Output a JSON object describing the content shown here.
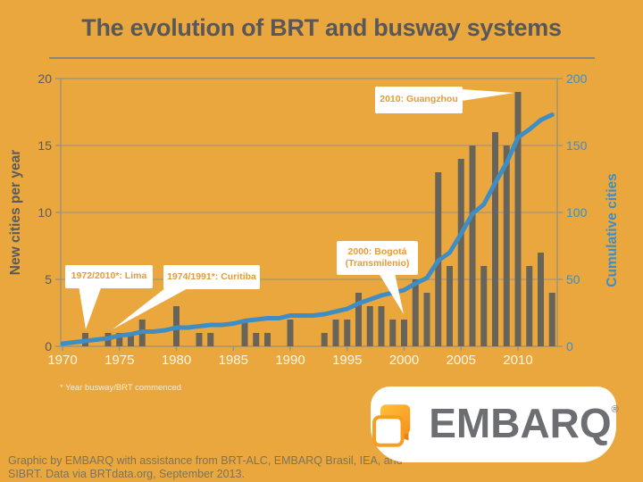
{
  "title": "The evolution of BRT and busway systems",
  "chart_data": {
    "type": "bar",
    "title": "The evolution of BRT and busway systems",
    "categories": [
      1970,
      1971,
      1972,
      1973,
      1974,
      1975,
      1976,
      1977,
      1978,
      1979,
      1980,
      1981,
      1982,
      1983,
      1984,
      1985,
      1986,
      1987,
      1988,
      1989,
      1990,
      1991,
      1992,
      1993,
      1994,
      1995,
      1996,
      1997,
      1998,
      1999,
      2000,
      2001,
      2002,
      2003,
      2004,
      2005,
      2006,
      2007,
      2008,
      2009,
      2010,
      2011,
      2012,
      2013
    ],
    "series": [
      {
        "name": "New cities per year",
        "type": "bar",
        "axis": "left",
        "color": "#69645A",
        "values": [
          0,
          0,
          1,
          0,
          1,
          1,
          1,
          2,
          0,
          0,
          3,
          0,
          1,
          1,
          0,
          0,
          2,
          1,
          1,
          0,
          2,
          0,
          0,
          1,
          2,
          2,
          4,
          3,
          3,
          2,
          2,
          5,
          4,
          13,
          6,
          14,
          15,
          6,
          16,
          15,
          19,
          6,
          7,
          4
        ]
      },
      {
        "name": "Cumulative cities",
        "type": "line",
        "axis": "right",
        "color": "#3E8EC5",
        "values": [
          2,
          3,
          4,
          5,
          6,
          8,
          9,
          11,
          11,
          12,
          14,
          14,
          15,
          16,
          16,
          17,
          19,
          20,
          21,
          21,
          23,
          23,
          23,
          24,
          26,
          28,
          32,
          35,
          38,
          40,
          42,
          47,
          51,
          64,
          70,
          84,
          99,
          106,
          122,
          137,
          156,
          162,
          169,
          173
        ]
      }
    ],
    "left_axis": {
      "label": "New cities per year",
      "ticks": [
        0,
        5,
        10,
        15,
        20
      ],
      "range": [
        0,
        20
      ]
    },
    "right_axis": {
      "label": "Cumulative cities",
      "ticks": [
        0,
        50,
        100,
        150,
        200
      ],
      "range": [
        0,
        200
      ]
    },
    "x_tick_labels": [
      "1970",
      "1975",
      "1980",
      "1985",
      "1990",
      "1995",
      "2000",
      "2005",
      "2010"
    ],
    "grid": true,
    "legend": "none",
    "annotations": [
      {
        "text": "1972/2010*: Lima",
        "target_year": 1972
      },
      {
        "text": "1974/1991*: Curitiba",
        "target_year": 1974
      },
      {
        "lines": [
          "2000: Bogotá",
          "(Transmilenio)"
        ],
        "target_year": 2000
      },
      {
        "text": "2010: Guangzhou",
        "target_year": 2010
      }
    ]
  },
  "footnote": "* Year busway/BRT commenced",
  "credits": {
    "line1": "Graphic by EMBARQ with assistance from BRT-ALC, EMBARQ Brasil, IEA, and",
    "line2": "SIBRT. Data via BRTdata.org, September 2013."
  },
  "logo": {
    "text": "EMBARQ",
    "registered": "®"
  },
  "colors": {
    "background": "#E9A73E",
    "bar": "#69645A",
    "line": "#3E8EC5",
    "text_dark": "#5A5A5C",
    "grid": "#98917F",
    "x_label": "#FCF7EA",
    "callout_text": "#E89A36",
    "white": "#FFFFFF"
  }
}
